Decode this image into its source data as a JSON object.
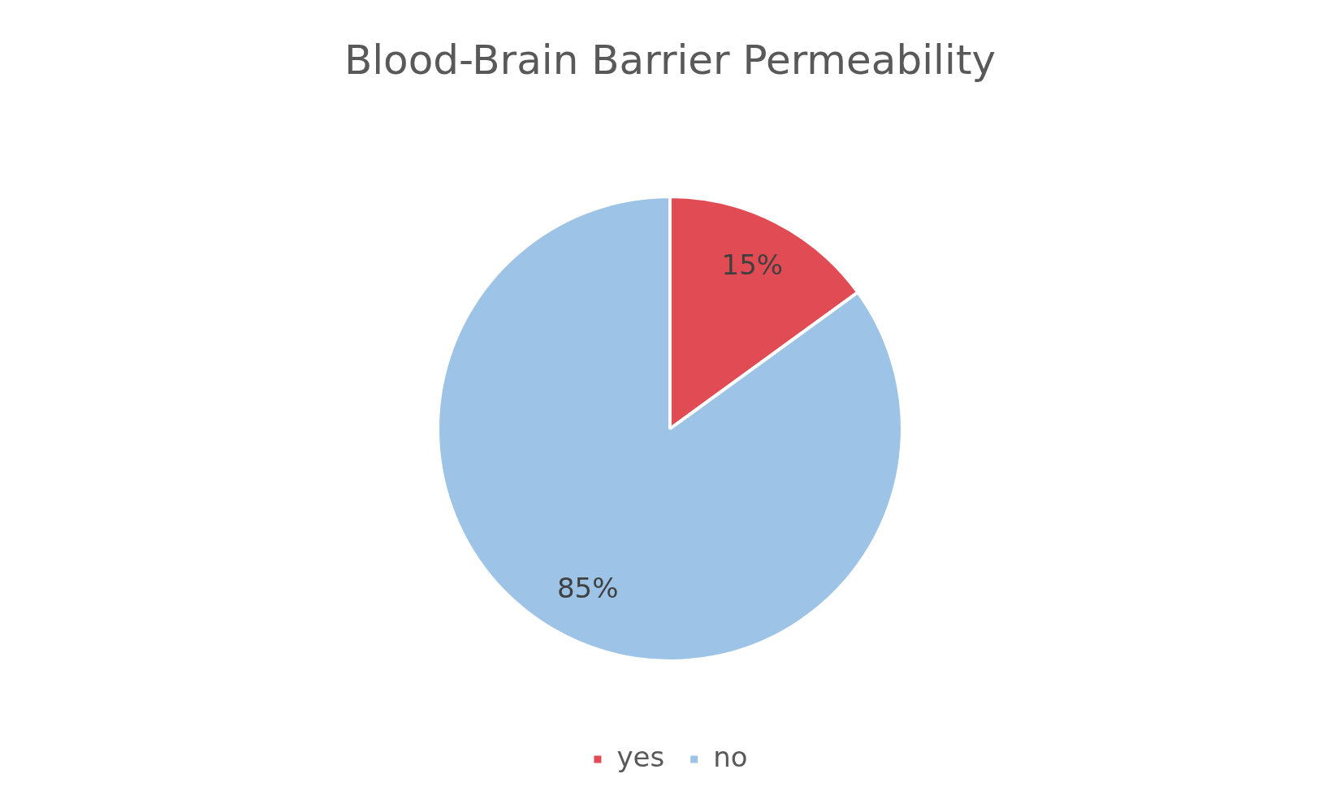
{
  "chart_data": {
    "type": "pie",
    "title": "Blood-Brain Barrier Permeability",
    "categories": [
      "yes",
      "no"
    ],
    "values": [
      15,
      85
    ],
    "value_labels": [
      "15%",
      "85%"
    ],
    "colors": [
      "#e04b54",
      "#9dc3e6"
    ],
    "legend": "bottom"
  }
}
